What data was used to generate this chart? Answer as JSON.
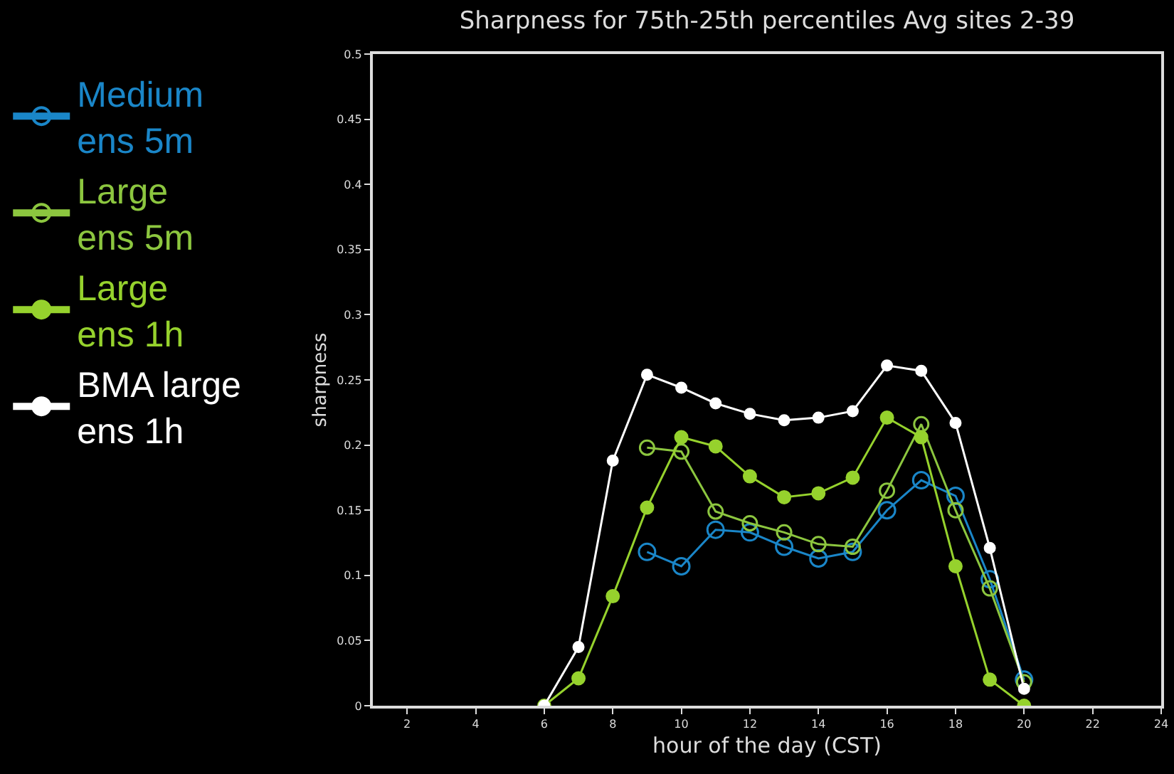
{
  "chart_data": {
    "type": "line",
    "title": "Sharpness for 75th-25th percentiles Avg sites 2-39",
    "xlabel": "hour of the day (CST)",
    "ylabel": "sharpness",
    "x": [
      6,
      7,
      8,
      9,
      10,
      11,
      12,
      13,
      14,
      15,
      16,
      17,
      18,
      19,
      20
    ],
    "series": [
      {
        "name": "Medium ens 5m",
        "color": "#1a86c8",
        "marker": "circle-open",
        "values": [
          null,
          null,
          null,
          0.118,
          0.107,
          0.135,
          0.133,
          0.122,
          0.113,
          0.118,
          0.15,
          0.173,
          0.161,
          0.097,
          0.02
        ]
      },
      {
        "name": "Large ens 5m",
        "color": "#8cc63f",
        "marker": "circle-open",
        "values": [
          null,
          null,
          null,
          0.198,
          0.195,
          0.149,
          0.14,
          0.133,
          0.124,
          0.122,
          0.165,
          0.216,
          0.15,
          0.09,
          0.018
        ]
      },
      {
        "name": "Large ens 1h",
        "color": "#96d22d",
        "marker": "circle",
        "values": [
          0,
          0.021,
          0.084,
          0.152,
          0.206,
          0.199,
          0.176,
          0.16,
          0.163,
          0.175,
          0.221,
          0.206,
          0.107,
          0.02,
          0
        ]
      },
      {
        "name": "BMA large ens 1h",
        "color": "#ffffff",
        "marker": "circle",
        "values": [
          0,
          0.045,
          0.188,
          0.254,
          0.244,
          0.232,
          0.224,
          0.219,
          0.221,
          0.226,
          0.261,
          0.257,
          0.217,
          0.121,
          0.013
        ]
      }
    ],
    "xlim": [
      1,
      24
    ],
    "xticks": [
      2,
      4,
      6,
      8,
      10,
      12,
      14,
      16,
      18,
      20,
      22,
      24
    ],
    "ylim": [
      0,
      0.5
    ],
    "yticks": [
      0,
      0.05,
      0.1,
      0.15,
      0.2,
      0.25,
      0.3,
      0.35,
      0.4,
      0.45,
      0.5
    ],
    "grid": false,
    "legend": "left",
    "line_style": "solid"
  }
}
